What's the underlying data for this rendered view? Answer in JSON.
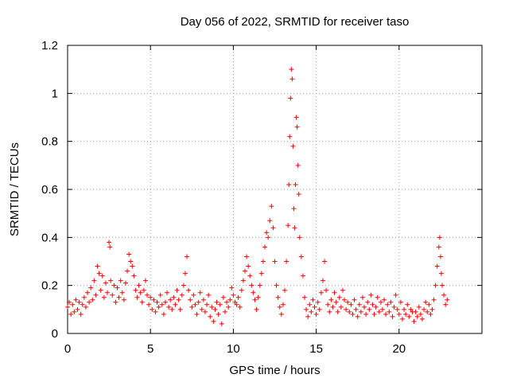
{
  "chart_data": {
    "type": "scatter",
    "title": "Day 056 of 2022, SRMTID for receiver taso",
    "xlabel": "GPS time / hours",
    "ylabel": "SRMTID / TECUs",
    "xlim": [
      0,
      25
    ],
    "ylim": [
      0,
      1.2
    ],
    "x_ticks": [
      0,
      5,
      10,
      15,
      20
    ],
    "x_tick_labels": [
      "0",
      "5",
      "10",
      "15",
      "20"
    ],
    "y_ticks": [
      0,
      0.2,
      0.4,
      0.6,
      0.8,
      1.0,
      1.2
    ],
    "y_tick_labels": [
      "0",
      "0.2",
      "0.4",
      "0.6",
      "0.8",
      "1",
      "1.2"
    ],
    "grid": true,
    "marker": "+",
    "marker_color": "#ff0000",
    "series": [
      {
        "name": "SRMTID",
        "points": [
          [
            0.0,
            0.11
          ],
          [
            0.1,
            0.13
          ],
          [
            0.2,
            0.08
          ],
          [
            0.3,
            0.12
          ],
          [
            0.4,
            0.09
          ],
          [
            0.5,
            0.14
          ],
          [
            0.6,
            0.1
          ],
          [
            0.7,
            0.13
          ],
          [
            0.8,
            0.08
          ],
          [
            0.9,
            0.12
          ],
          [
            1.0,
            0.15
          ],
          [
            1.1,
            0.11
          ],
          [
            1.2,
            0.17
          ],
          [
            1.3,
            0.13
          ],
          [
            1.4,
            0.19
          ],
          [
            1.5,
            0.14
          ],
          [
            1.6,
            0.22
          ],
          [
            1.7,
            0.16
          ],
          [
            1.8,
            0.28
          ],
          [
            1.9,
            0.25
          ],
          [
            2.0,
            0.18
          ],
          [
            2.1,
            0.24
          ],
          [
            2.2,
            0.15
          ],
          [
            2.3,
            0.21
          ],
          [
            2.4,
            0.17
          ],
          [
            2.5,
            0.38
          ],
          [
            2.55,
            0.36
          ],
          [
            2.6,
            0.22
          ],
          [
            2.7,
            0.16
          ],
          [
            2.8,
            0.2
          ],
          [
            2.9,
            0.13
          ],
          [
            3.0,
            0.19
          ],
          [
            3.1,
            0.15
          ],
          [
            3.2,
            0.22
          ],
          [
            3.3,
            0.17
          ],
          [
            3.4,
            0.14
          ],
          [
            3.5,
            0.21
          ],
          [
            3.6,
            0.26
          ],
          [
            3.7,
            0.33
          ],
          [
            3.8,
            0.3
          ],
          [
            3.9,
            0.28
          ],
          [
            4.0,
            0.24
          ],
          [
            4.1,
            0.18
          ],
          [
            4.2,
            0.15
          ],
          [
            4.3,
            0.2
          ],
          [
            4.4,
            0.17
          ],
          [
            4.5,
            0.13
          ],
          [
            4.6,
            0.18
          ],
          [
            4.7,
            0.22
          ],
          [
            4.8,
            0.16
          ],
          [
            4.9,
            0.12
          ],
          [
            5.0,
            0.15
          ],
          [
            5.1,
            0.1
          ],
          [
            5.2,
            0.14
          ],
          [
            5.3,
            0.09
          ],
          [
            5.4,
            0.13
          ],
          [
            5.5,
            0.11
          ],
          [
            5.6,
            0.16
          ],
          [
            5.7,
            0.12
          ],
          [
            5.8,
            0.08
          ],
          [
            5.9,
            0.13
          ],
          [
            6.0,
            0.17
          ],
          [
            6.1,
            0.11
          ],
          [
            6.2,
            0.14
          ],
          [
            6.3,
            0.1
          ],
          [
            6.4,
            0.15
          ],
          [
            6.5,
            0.12
          ],
          [
            6.6,
            0.18
          ],
          [
            6.7,
            0.14
          ],
          [
            6.8,
            0.1
          ],
          [
            6.9,
            0.16
          ],
          [
            7.0,
            0.2
          ],
          [
            7.1,
            0.25
          ],
          [
            7.2,
            0.32
          ],
          [
            7.3,
            0.18
          ],
          [
            7.4,
            0.14
          ],
          [
            7.5,
            0.11
          ],
          [
            7.6,
            0.16
          ],
          [
            7.7,
            0.12
          ],
          [
            7.8,
            0.08
          ],
          [
            7.9,
            0.13
          ],
          [
            8.0,
            0.17
          ],
          [
            8.1,
            0.1
          ],
          [
            8.2,
            0.14
          ],
          [
            8.3,
            0.09
          ],
          [
            8.4,
            0.12
          ],
          [
            8.5,
            0.16
          ],
          [
            8.6,
            0.07
          ],
          [
            8.7,
            0.11
          ],
          [
            8.8,
            0.05
          ],
          [
            8.9,
            0.1
          ],
          [
            9.0,
            0.13
          ],
          [
            9.1,
            0.08
          ],
          [
            9.2,
            0.12
          ],
          [
            9.3,
            0.04
          ],
          [
            9.4,
            0.15
          ],
          [
            9.5,
            0.09
          ],
          [
            9.6,
            0.13
          ],
          [
            9.7,
            0.11
          ],
          [
            9.8,
            0.14
          ],
          [
            9.9,
            0.19
          ],
          [
            10.0,
            0.16
          ],
          [
            10.1,
            0.13
          ],
          [
            10.2,
            0.12
          ],
          [
            10.3,
            0.15
          ],
          [
            10.4,
            0.11
          ],
          [
            10.5,
            0.18
          ],
          [
            10.6,
            0.22
          ],
          [
            10.7,
            0.26
          ],
          [
            10.8,
            0.32
          ],
          [
            10.9,
            0.28
          ],
          [
            11.0,
            0.24
          ],
          [
            11.1,
            0.2
          ],
          [
            11.2,
            0.17
          ],
          [
            11.3,
            0.14
          ],
          [
            11.4,
            0.1
          ],
          [
            11.5,
            0.15
          ],
          [
            11.6,
            0.2
          ],
          [
            11.7,
            0.25
          ],
          [
            11.8,
            0.3
          ],
          [
            11.9,
            0.36
          ],
          [
            12.0,
            0.42
          ],
          [
            12.1,
            0.4
          ],
          [
            12.2,
            0.47
          ],
          [
            12.3,
            0.53
          ],
          [
            12.4,
            0.44
          ],
          [
            12.5,
            0.3
          ],
          [
            12.6,
            0.2
          ],
          [
            12.7,
            0.15
          ],
          [
            12.8,
            0.11
          ],
          [
            12.9,
            0.08
          ],
          [
            13.0,
            0.12
          ],
          [
            13.1,
            0.18
          ],
          [
            13.2,
            0.3
          ],
          [
            13.3,
            0.45
          ],
          [
            13.35,
            0.62
          ],
          [
            13.4,
            0.82
          ],
          [
            13.45,
            0.98
          ],
          [
            13.5,
            1.1
          ],
          [
            13.55,
            1.06
          ],
          [
            13.6,
            0.78
          ],
          [
            13.65,
            0.52
          ],
          [
            13.7,
            0.44
          ],
          [
            13.75,
            0.62
          ],
          [
            13.8,
            0.9
          ],
          [
            13.85,
            0.86
          ],
          [
            13.9,
            0.7
          ],
          [
            13.95,
            0.58
          ],
          [
            14.0,
            0.4
          ],
          [
            14.1,
            0.32
          ],
          [
            14.2,
            0.24
          ],
          [
            14.3,
            0.15
          ],
          [
            14.4,
            0.1
          ],
          [
            14.5,
            0.07
          ],
          [
            14.6,
            0.12
          ],
          [
            14.7,
            0.09
          ],
          [
            14.8,
            0.14
          ],
          [
            14.9,
            0.11
          ],
          [
            15.0,
            0.08
          ],
          [
            15.1,
            0.13
          ],
          [
            15.2,
            0.1
          ],
          [
            15.3,
            0.17
          ],
          [
            15.4,
            0.22
          ],
          [
            15.5,
            0.3
          ],
          [
            15.6,
            0.18
          ],
          [
            15.7,
            0.12
          ],
          [
            15.8,
            0.09
          ],
          [
            15.9,
            0.14
          ],
          [
            16.0,
            0.11
          ],
          [
            16.1,
            0.17
          ],
          [
            16.2,
            0.13
          ],
          [
            16.3,
            0.09
          ],
          [
            16.4,
            0.15
          ],
          [
            16.5,
            0.11
          ],
          [
            16.6,
            0.18
          ],
          [
            16.7,
            0.14
          ],
          [
            16.8,
            0.1
          ],
          [
            16.9,
            0.13
          ],
          [
            17.0,
            0.09
          ],
          [
            17.1,
            0.12
          ],
          [
            17.2,
            0.08
          ],
          [
            17.3,
            0.14
          ],
          [
            17.4,
            0.1
          ],
          [
            17.5,
            0.07
          ],
          [
            17.6,
            0.12
          ],
          [
            17.7,
            0.09
          ],
          [
            17.8,
            0.15
          ],
          [
            17.9,
            0.11
          ],
          [
            18.0,
            0.08
          ],
          [
            18.1,
            0.13
          ],
          [
            18.2,
            0.1
          ],
          [
            18.3,
            0.16
          ],
          [
            18.4,
            0.12
          ],
          [
            18.5,
            0.08
          ],
          [
            18.6,
            0.11
          ],
          [
            18.7,
            0.15
          ],
          [
            18.8,
            0.09
          ],
          [
            18.9,
            0.13
          ],
          [
            19.0,
            0.1
          ],
          [
            19.1,
            0.14
          ],
          [
            19.2,
            0.08
          ],
          [
            19.3,
            0.12
          ],
          [
            19.4,
            0.09
          ],
          [
            19.5,
            0.13
          ],
          [
            19.6,
            0.07
          ],
          [
            19.7,
            0.11
          ],
          [
            19.8,
            0.16
          ],
          [
            19.9,
            0.1
          ],
          [
            20.0,
            0.08
          ],
          [
            20.1,
            0.13
          ],
          [
            20.2,
            0.06
          ],
          [
            20.3,
            0.1
          ],
          [
            20.4,
            0.08
          ],
          [
            20.5,
            0.12
          ],
          [
            20.6,
            0.07
          ],
          [
            20.7,
            0.1
          ],
          [
            20.8,
            0.09
          ],
          [
            20.9,
            0.05
          ],
          [
            21.0,
            0.09
          ],
          [
            21.1,
            0.07
          ],
          [
            21.2,
            0.11
          ],
          [
            21.3,
            0.08
          ],
          [
            21.4,
            0.06
          ],
          [
            21.5,
            0.1
          ],
          [
            21.6,
            0.13
          ],
          [
            21.7,
            0.09
          ],
          [
            21.8,
            0.12
          ],
          [
            21.9,
            0.08
          ],
          [
            22.0,
            0.1
          ],
          [
            22.1,
            0.14
          ],
          [
            22.2,
            0.2
          ],
          [
            22.3,
            0.28
          ],
          [
            22.4,
            0.36
          ],
          [
            22.45,
            0.4
          ],
          [
            22.5,
            0.32
          ],
          [
            22.55,
            0.25
          ],
          [
            22.6,
            0.2
          ],
          [
            22.7,
            0.16
          ],
          [
            22.8,
            0.12
          ],
          [
            22.9,
            0.14
          ]
        ]
      }
    ]
  }
}
